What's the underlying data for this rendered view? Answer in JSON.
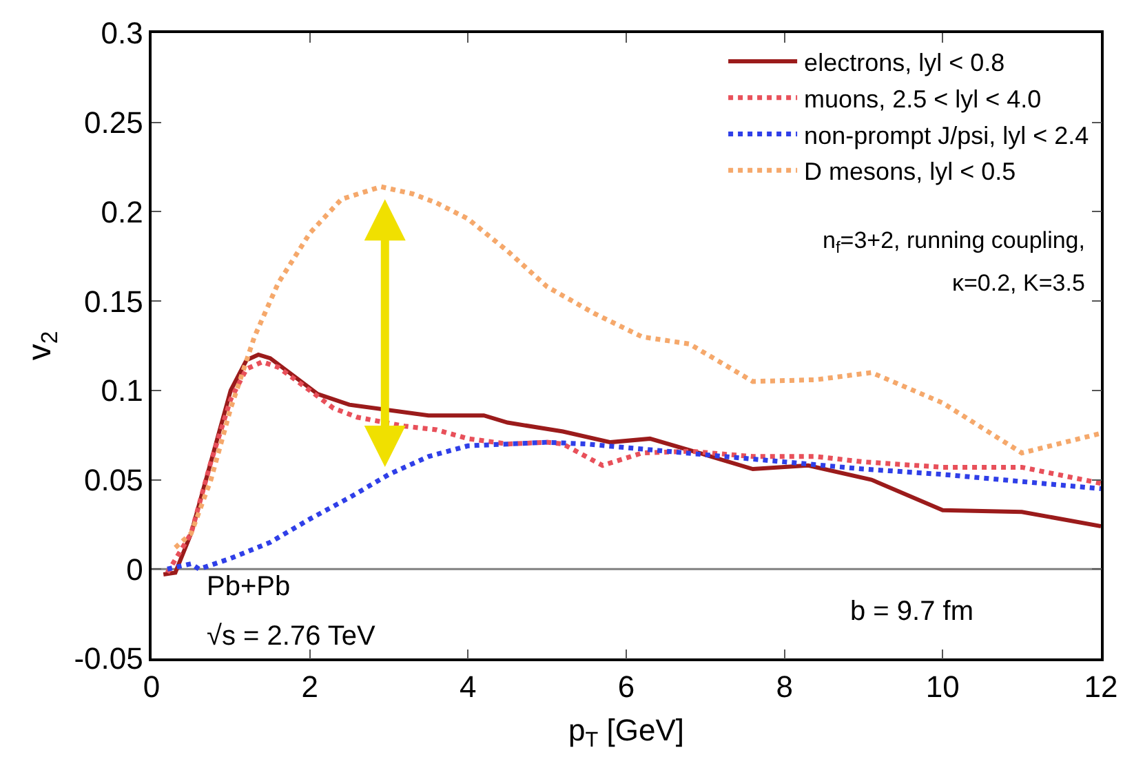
{
  "chart_data": {
    "type": "line",
    "xlabel": "p$_{T}$ [GeV]",
    "ylabel": "v$_{2}$",
    "xlim": [
      0,
      12
    ],
    "xticks": [
      0,
      2,
      4,
      6,
      8,
      10,
      12
    ],
    "ylim": [
      -0.05,
      0.3
    ],
    "yticks": [
      -0.05,
      0,
      0.05,
      0.1,
      0.15,
      0.2,
      0.25,
      0.3
    ],
    "grid": false,
    "legend": "top right",
    "series": [
      {
        "name": "electrons, lyl < 0.8",
        "color": "#9b1b1b",
        "line_style": "solid",
        "x": [
          0.15,
          0.3,
          0.5,
          0.75,
          1.0,
          1.2,
          1.35,
          1.5,
          1.8,
          2.1,
          2.5,
          3.5,
          4.2,
          4.5,
          5.2,
          5.8,
          6.3,
          7.0,
          7.6,
          8.3,
          9.1,
          10.0,
          11.0,
          12.0
        ],
        "values": [
          -0.003,
          -0.002,
          0.02,
          0.06,
          0.1,
          0.117,
          0.12,
          0.118,
          0.108,
          0.098,
          0.092,
          0.086,
          0.086,
          0.082,
          0.077,
          0.071,
          0.073,
          0.064,
          0.056,
          0.058,
          0.05,
          0.033,
          0.032,
          0.024
        ]
      },
      {
        "name": "muons, 2.5 < lyl < 4.0",
        "color": "#e8505a",
        "line_style": "dotted",
        "x": [
          0.2,
          0.5,
          0.75,
          1.0,
          1.2,
          1.4,
          1.6,
          2.0,
          2.3,
          2.6,
          3.2,
          3.6,
          4.0,
          4.5,
          5.0,
          5.2,
          5.7,
          6.2,
          6.8,
          7.6,
          8.4,
          9.0,
          10.0,
          11.0,
          12.0
        ],
        "values": [
          -0.002,
          0.02,
          0.06,
          0.095,
          0.112,
          0.116,
          0.113,
          0.1,
          0.09,
          0.085,
          0.08,
          0.078,
          0.073,
          0.07,
          0.071,
          0.07,
          0.058,
          0.065,
          0.066,
          0.063,
          0.063,
          0.06,
          0.057,
          0.057,
          0.048
        ]
      },
      {
        "name": "non-prompt J/psi, lyl < 2.4",
        "color": "#2f3fe8",
        "line_style": "dotted",
        "x": [
          0.2,
          0.5,
          0.6,
          1.0,
          1.5,
          2.0,
          2.5,
          3.0,
          3.5,
          4.0,
          4.5,
          5.0,
          5.5,
          6.0,
          6.5,
          7.0,
          8.0,
          9.0,
          10.0,
          11.0,
          12.0
        ],
        "values": [
          0.0,
          0.003,
          0.0,
          0.006,
          0.015,
          0.028,
          0.04,
          0.053,
          0.063,
          0.069,
          0.07,
          0.071,
          0.07,
          0.068,
          0.066,
          0.064,
          0.06,
          0.056,
          0.053,
          0.049,
          0.045
        ]
      },
      {
        "name": "D mesons, lyl < 0.5",
        "color": "#f5a86b",
        "line_style": "dotted",
        "x": [
          0.3,
          0.5,
          0.75,
          1.0,
          1.3,
          1.6,
          2.0,
          2.4,
          2.9,
          3.3,
          3.6,
          4.0,
          4.5,
          5.0,
          5.6,
          6.2,
          6.8,
          7.6,
          8.4,
          9.1,
          10.0,
          11.0,
          12.0
        ],
        "values": [
          0.012,
          0.02,
          0.05,
          0.09,
          0.13,
          0.16,
          0.188,
          0.207,
          0.214,
          0.21,
          0.205,
          0.196,
          0.178,
          0.158,
          0.143,
          0.13,
          0.126,
          0.105,
          0.106,
          0.11,
          0.093,
          0.065,
          0.076
        ]
      }
    ],
    "ref_lines": [
      {
        "axis": "y",
        "value": 0,
        "color": "#808080"
      }
    ],
    "annotations": [
      "n$_{f}$=3+2, running coupling,",
      "κ=0.2, K=3.5",
      "Pb+Pb",
      "√s = 2.76 TeV",
      "b = 9.7 fm"
    ]
  }
}
